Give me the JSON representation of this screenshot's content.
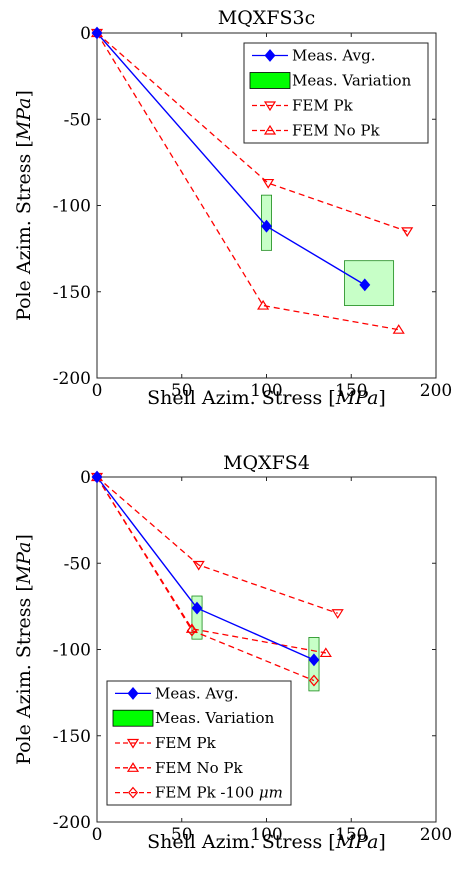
{
  "chart_data": [
    {
      "type": "line",
      "title": "MQXFS3c",
      "xlabel_text": "Shell Azim. Stress ",
      "xlabel_unit": "MPa",
      "ylabel_text": "Pole Azim. Stress ",
      "ylabel_unit": "MPa",
      "xlim": [
        0,
        200
      ],
      "ylim": [
        -200,
        0
      ],
      "xticks": [
        "0",
        "50",
        "100",
        "150",
        "200"
      ],
      "yticks": [
        "0",
        "-50",
        "-100",
        "-150",
        "-200"
      ],
      "grid": false,
      "legend_position": "top-right",
      "series": [
        {
          "name": "Meas. Avg.",
          "style": "solid",
          "marker": "diamond",
          "color": "#0000ff",
          "x": [
            0,
            100,
            158
          ],
          "y": [
            0,
            -112,
            -146
          ]
        },
        {
          "name": "FEM Pk",
          "style": "dashed",
          "marker": "triangle-down",
          "color": "#ff0000",
          "x": [
            0,
            101,
            183
          ],
          "y": [
            0,
            -87,
            -115
          ]
        },
        {
          "name": "FEM No Pk",
          "style": "dashed",
          "marker": "triangle-up",
          "color": "#ff0000",
          "x": [
            0,
            98,
            178
          ],
          "y": [
            0,
            -158,
            -172
          ]
        }
      ],
      "variation_name": "Meas. Variation",
      "variation_color": "#00ff00",
      "variation_boxes": [
        {
          "x": [
            97,
            103
          ],
          "y": [
            -126,
            -94
          ]
        },
        {
          "x": [
            146,
            175
          ],
          "y": [
            -158,
            -132
          ]
        }
      ]
    },
    {
      "type": "line",
      "title": "MQXFS4",
      "xlabel_text": "Shell Azim. Stress ",
      "xlabel_unit": "MPa",
      "ylabel_text": "Pole Azim. Stress ",
      "ylabel_unit": "MPa",
      "xlim": [
        0,
        200
      ],
      "ylim": [
        -200,
        0
      ],
      "xticks": [
        "0",
        "50",
        "100",
        "150",
        "200"
      ],
      "yticks": [
        "0",
        "-50",
        "-100",
        "-150",
        "-200"
      ],
      "grid": false,
      "legend_position": "bottom-left",
      "series": [
        {
          "name": "Meas. Avg.",
          "style": "solid",
          "marker": "diamond",
          "color": "#0000ff",
          "x": [
            0,
            59,
            128
          ],
          "y": [
            0,
            -76,
            -106
          ]
        },
        {
          "name": "FEM Pk",
          "style": "dashed",
          "marker": "triangle-down",
          "color": "#ff0000",
          "x": [
            0,
            60,
            142
          ],
          "y": [
            0,
            -51,
            -79
          ]
        },
        {
          "name": "FEM No Pk",
          "style": "dashed",
          "marker": "triangle-up",
          "color": "#ff0000",
          "x": [
            0,
            56,
            135
          ],
          "y": [
            0,
            -88,
            -102
          ]
        },
        {
          "name": "FEM Pk -100 ",
          "name_unit": "μm",
          "style": "dashed",
          "marker": "diamond-open",
          "color": "#ff0000",
          "x": [
            0,
            56,
            128
          ],
          "y": [
            0,
            -89,
            -118
          ]
        }
      ],
      "variation_name": "Meas. Variation",
      "variation_color": "#00ff00",
      "variation_boxes": [
        {
          "x": [
            56,
            62
          ],
          "y": [
            -94,
            -69
          ]
        },
        {
          "x": [
            125,
            131
          ],
          "y": [
            -124,
            -93
          ]
        }
      ]
    }
  ]
}
